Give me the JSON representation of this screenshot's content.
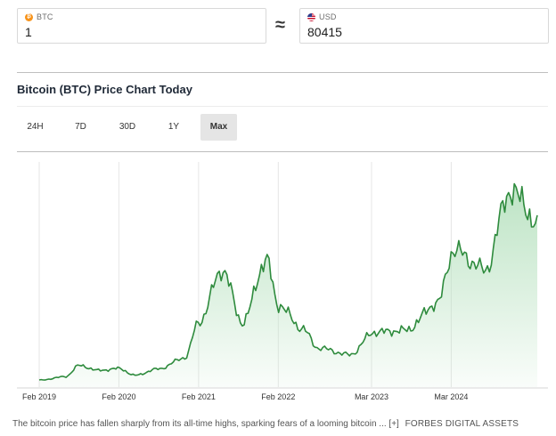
{
  "converter": {
    "from": {
      "label": "BTC",
      "value": "1",
      "icon": "bitcoin-icon"
    },
    "approx_symbol": "≈",
    "to": {
      "label": "USD",
      "value": "80415",
      "icon": "us-flag-icon"
    }
  },
  "chart_section": {
    "title": "Bitcoin (BTC) Price Chart Today",
    "tabs": [
      {
        "label": "24H",
        "active": false
      },
      {
        "label": "7D",
        "active": false
      },
      {
        "label": "30D",
        "active": false
      },
      {
        "label": "1Y",
        "active": false
      },
      {
        "label": "Max",
        "active": true
      }
    ]
  },
  "chart_data": {
    "type": "area",
    "x_tick_labels": [
      "Feb 2019",
      "Feb 2020",
      "Feb 2021",
      "Feb 2022",
      "Mar 2023",
      "Mar 2024"
    ],
    "y_label": "",
    "grid": "vertical",
    "colors": {
      "line": "#2e8b3d",
      "fill": "#b9e2c1"
    },
    "series": [
      {
        "values": [
          [
            2019.0,
            3500
          ],
          [
            2019.33,
            5300
          ],
          [
            2019.5,
            11000
          ],
          [
            2019.75,
            8500
          ],
          [
            2020.0,
            9500
          ],
          [
            2020.2,
            6000
          ],
          [
            2020.5,
            9300
          ],
          [
            2020.83,
            15000
          ],
          [
            2021.0,
            33000
          ],
          [
            2021.3,
            60000
          ],
          [
            2021.55,
            33000
          ],
          [
            2021.85,
            65000
          ],
          [
            2022.0,
            42000
          ],
          [
            2022.3,
            30000
          ],
          [
            2022.5,
            20000
          ],
          [
            2022.9,
            16500
          ],
          [
            2023.2,
            28000
          ],
          [
            2023.6,
            29000
          ],
          [
            2024.0,
            43000
          ],
          [
            2024.2,
            70000
          ],
          [
            2024.6,
            60000
          ],
          [
            2024.9,
            100000
          ],
          [
            2025.05,
            96000
          ],
          [
            2025.25,
            80415
          ]
        ]
      }
    ]
  },
  "caption": {
    "text": "The bitcoin price has fallen sharply from its all-time highs, sparking fears of a looming bitcoin ... [+]",
    "source": "FORBES DIGITAL ASSETS"
  }
}
